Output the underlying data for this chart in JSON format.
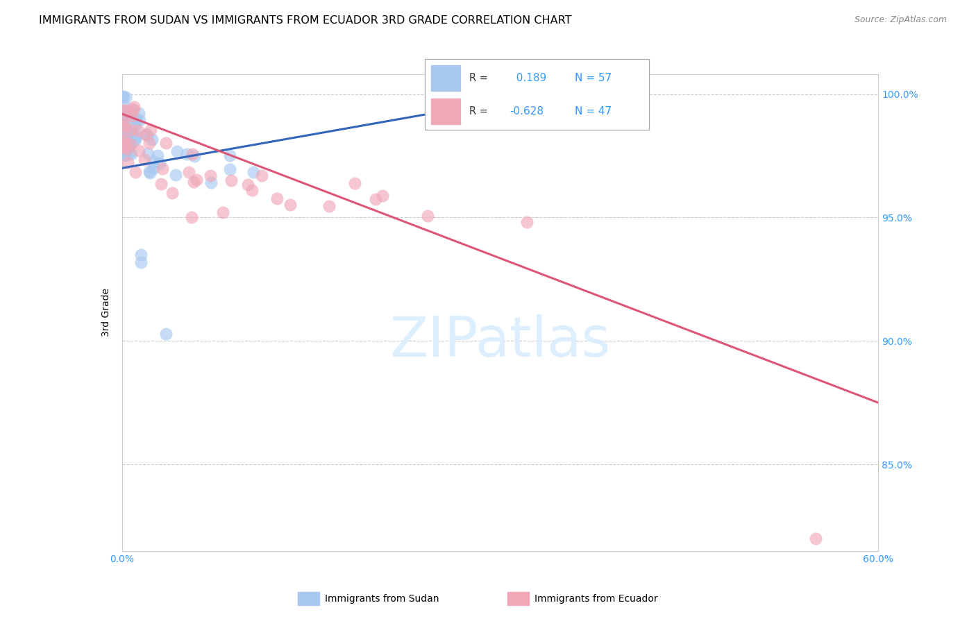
{
  "title": "IMMIGRANTS FROM SUDAN VS IMMIGRANTS FROM ECUADOR 3RD GRADE CORRELATION CHART",
  "source": "Source: ZipAtlas.com",
  "ylabel": "3rd Grade",
  "xlim": [
    0.0,
    0.6
  ],
  "ylim": [
    0.815,
    1.008
  ],
  "xticks": [
    0.0,
    0.1,
    0.2,
    0.3,
    0.4,
    0.5,
    0.6
  ],
  "xticklabels": [
    "0.0%",
    "",
    "",
    "",
    "",
    "",
    "60.0%"
  ],
  "yticks": [
    0.85,
    0.9,
    0.95,
    1.0
  ],
  "yticklabels": [
    "85.0%",
    "90.0%",
    "95.0%",
    "100.0%"
  ],
  "grid_color": "#cccccc",
  "background_color": "#ffffff",
  "sudan_R": 0.189,
  "sudan_N": 57,
  "ecuador_R": -0.628,
  "ecuador_N": 47,
  "sudan_color": "#a8c8f0",
  "ecuador_color": "#f0a8b8",
  "sudan_line_color": "#3366bb",
  "ecuador_line_color": "#dd5577",
  "sudan_line_x0": 0.0,
  "sudan_line_y0": 0.97,
  "sudan_line_x1": 0.31,
  "sudan_line_y1": 0.998,
  "ecuador_line_x0": 0.0,
  "ecuador_line_y0": 0.992,
  "ecuador_line_x1": 0.6,
  "ecuador_line_y1": 0.875,
  "legend_sudan_label": "Immigrants from Sudan",
  "legend_ecuador_label": "Immigrants from Ecuador",
  "title_fontsize": 11.5,
  "axis_label_fontsize": 10,
  "tick_fontsize": 10,
  "source_fontsize": 9,
  "tick_color": "#3399ff",
  "watermark_color": "#ddeeff"
}
